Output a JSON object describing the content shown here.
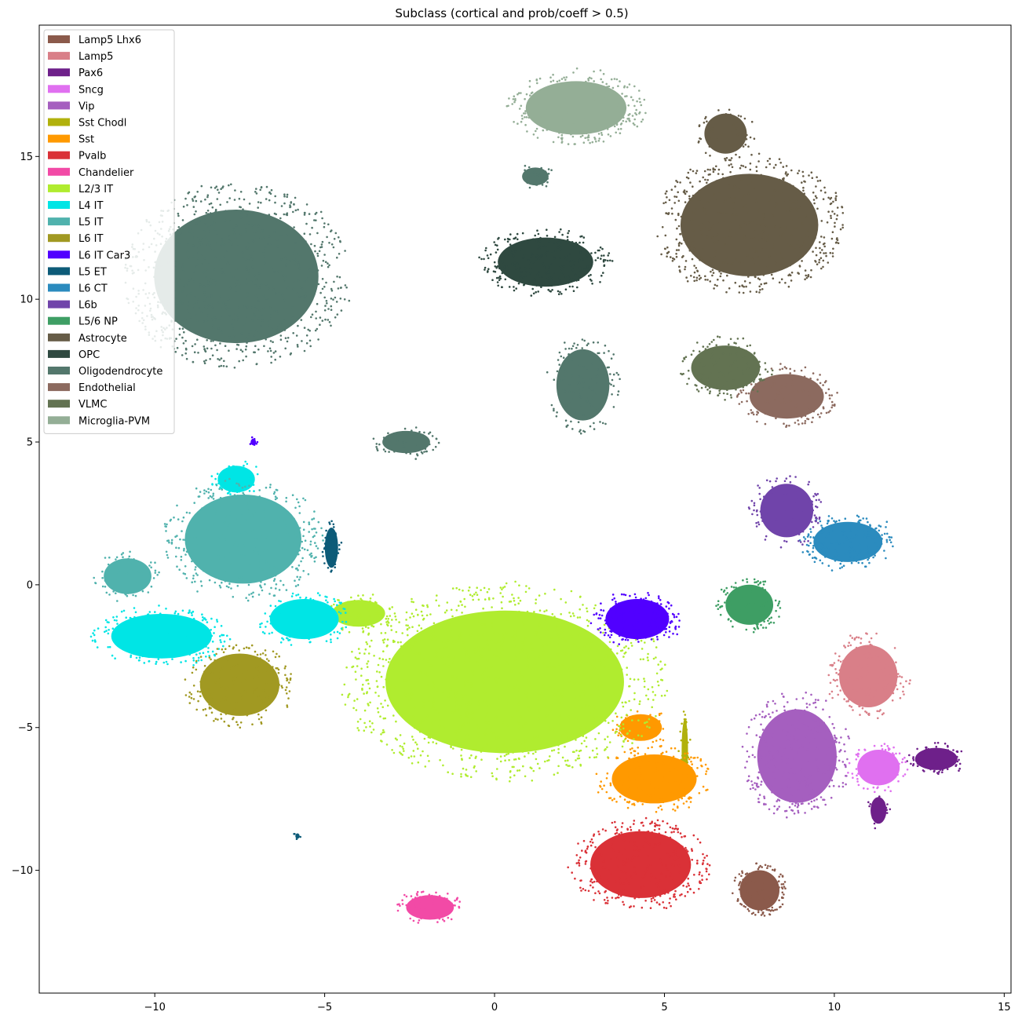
{
  "chart_data": {
    "type": "scatter",
    "title": "Subclass (cortical and prob/coeff > 0.5)",
    "xlabel": "",
    "ylabel": "",
    "xlim": [
      -13.4,
      15.2
    ],
    "ylim": [
      -14.3,
      19.6
    ],
    "x_ticks": [
      -10,
      -5,
      0,
      5,
      10,
      15
    ],
    "y_ticks": [
      -10,
      -5,
      0,
      5,
      10,
      15
    ],
    "x_tick_labels": [
      "−10",
      "−5",
      "0",
      "5",
      "10",
      "15"
    ],
    "y_tick_labels": [
      "−10",
      "−5",
      "0",
      "5",
      "10",
      "15"
    ],
    "grid": false,
    "legend_position": "top-left",
    "series": [
      {
        "name": "Lamp5 Lhx6",
        "color": "#8b5a4b",
        "clusters": [
          {
            "cx": 7.8,
            "cy": -10.7,
            "rx": 0.75,
            "ry": 0.9,
            "n": 140
          }
        ]
      },
      {
        "name": "Lamp5",
        "color": "#d97f88",
        "clusters": [
          {
            "cx": 11.0,
            "cy": -3.2,
            "rx": 1.1,
            "ry": 1.4,
            "n": 180
          }
        ]
      },
      {
        "name": "Pax6",
        "color": "#6e208a",
        "clusters": [
          {
            "cx": 13.0,
            "cy": -6.1,
            "rx": 0.8,
            "ry": 0.5,
            "n": 90
          },
          {
            "cx": 11.3,
            "cy": -7.9,
            "rx": 0.3,
            "ry": 0.6,
            "n": 30
          }
        ]
      },
      {
        "name": "Sncg",
        "color": "#e070f0",
        "clusters": [
          {
            "cx": 11.3,
            "cy": -6.4,
            "rx": 0.8,
            "ry": 0.8,
            "n": 110
          }
        ]
      },
      {
        "name": "Vip",
        "color": "#a55fbf",
        "clusters": [
          {
            "cx": 8.9,
            "cy": -6.0,
            "rx": 1.5,
            "ry": 2.1,
            "n": 330
          }
        ]
      },
      {
        "name": "Sst Chodl",
        "color": "#b1b10c",
        "clusters": [
          {
            "cx": 5.6,
            "cy": -5.8,
            "rx": 0.12,
            "ry": 1.4,
            "n": 40
          },
          {
            "cx": 2.5,
            "cy": -2.7,
            "rx": 0.2,
            "ry": 0.1,
            "n": 10
          }
        ]
      },
      {
        "name": "Sst",
        "color": "#ff9900",
        "clusters": [
          {
            "cx": 4.7,
            "cy": -6.8,
            "rx": 1.6,
            "ry": 1.1,
            "n": 220
          },
          {
            "cx": 4.3,
            "cy": -5.0,
            "rx": 0.8,
            "ry": 0.6,
            "n": 60
          }
        ]
      },
      {
        "name": "Pvalb",
        "color": "#da3137",
        "clusters": [
          {
            "cx": 4.3,
            "cy": -9.8,
            "rx": 1.9,
            "ry": 1.5,
            "n": 360
          }
        ]
      },
      {
        "name": "Chandelier",
        "color": "#f24aa6",
        "clusters": [
          {
            "cx": -1.9,
            "cy": -11.3,
            "rx": 0.9,
            "ry": 0.55,
            "n": 90
          }
        ]
      },
      {
        "name": "L2/3 IT",
        "color": "#b0ec2f",
        "clusters": [
          {
            "cx": 0.3,
            "cy": -3.4,
            "rx": 4.5,
            "ry": 3.2,
            "n": 1100
          },
          {
            "cx": -4.0,
            "cy": -1.0,
            "rx": 1.0,
            "ry": 0.6,
            "n": 80
          }
        ]
      },
      {
        "name": "L4 IT",
        "color": "#00e5e5",
        "clusters": [
          {
            "cx": -9.8,
            "cy": -1.8,
            "rx": 1.9,
            "ry": 1.0,
            "n": 260
          },
          {
            "cx": -5.6,
            "cy": -1.2,
            "rx": 1.3,
            "ry": 0.9,
            "n": 140
          },
          {
            "cx": -7.6,
            "cy": 3.7,
            "rx": 0.7,
            "ry": 0.6,
            "n": 50
          }
        ]
      },
      {
        "name": "L5 IT",
        "color": "#50b2ad",
        "clusters": [
          {
            "cx": -7.4,
            "cy": 1.6,
            "rx": 2.2,
            "ry": 2.0,
            "n": 420
          },
          {
            "cx": -10.8,
            "cy": 0.3,
            "rx": 0.9,
            "ry": 0.8,
            "n": 80
          }
        ]
      },
      {
        "name": "L6 IT",
        "color": "#a19922",
        "clusters": [
          {
            "cx": -7.5,
            "cy": -3.5,
            "rx": 1.5,
            "ry": 1.4,
            "n": 230
          }
        ]
      },
      {
        "name": "L6 IT Car3",
        "color": "#5100ff",
        "clusters": [
          {
            "cx": 4.2,
            "cy": -1.2,
            "rx": 1.2,
            "ry": 0.9,
            "n": 180
          },
          {
            "cx": -7.1,
            "cy": 5.0,
            "rx": 0.1,
            "ry": 0.15,
            "n": 8
          }
        ]
      },
      {
        "name": "L5 ET",
        "color": "#0d5b78",
        "clusters": [
          {
            "cx": -4.8,
            "cy": 1.3,
            "rx": 0.25,
            "ry": 0.9,
            "n": 50
          },
          {
            "cx": -5.8,
            "cy": -8.8,
            "rx": 0.08,
            "ry": 0.12,
            "n": 6
          }
        ]
      },
      {
        "name": "L6 CT",
        "color": "#2b8bbe",
        "clusters": [
          {
            "cx": 10.4,
            "cy": 1.5,
            "rx": 1.3,
            "ry": 0.9,
            "n": 200
          }
        ]
      },
      {
        "name": "L6b",
        "color": "#7044aa",
        "clusters": [
          {
            "cx": 8.6,
            "cy": 2.6,
            "rx": 1.0,
            "ry": 1.2,
            "n": 150
          }
        ]
      },
      {
        "name": "L5/6 NP",
        "color": "#3e9e64",
        "clusters": [
          {
            "cx": 7.5,
            "cy": -0.7,
            "rx": 0.9,
            "ry": 0.9,
            "n": 130
          }
        ]
      },
      {
        "name": "Astrocyte",
        "color": "#665c47",
        "clusters": [
          {
            "cx": 7.5,
            "cy": 12.6,
            "rx": 2.6,
            "ry": 2.3,
            "n": 620
          },
          {
            "cx": 6.8,
            "cy": 15.8,
            "rx": 0.8,
            "ry": 0.9,
            "n": 60
          }
        ]
      },
      {
        "name": "OPC",
        "color": "#2f4940",
        "clusters": [
          {
            "cx": 1.5,
            "cy": 11.3,
            "rx": 1.8,
            "ry": 1.1,
            "n": 300
          }
        ]
      },
      {
        "name": "Oligodendrocyte",
        "color": "#53776c",
        "clusters": [
          {
            "cx": -7.6,
            "cy": 10.8,
            "rx": 3.1,
            "ry": 3.0,
            "n": 900
          },
          {
            "cx": -2.6,
            "cy": 5.0,
            "rx": 0.9,
            "ry": 0.5,
            "n": 60
          },
          {
            "cx": 1.2,
            "cy": 14.3,
            "rx": 0.5,
            "ry": 0.4,
            "n": 40
          },
          {
            "cx": 2.6,
            "cy": 7.0,
            "rx": 1.0,
            "ry": 1.6,
            "n": 140
          }
        ]
      },
      {
        "name": "Endothelial",
        "color": "#8c6a5f",
        "clusters": [
          {
            "cx": 8.6,
            "cy": 6.6,
            "rx": 1.4,
            "ry": 1.0,
            "n": 180
          }
        ]
      },
      {
        "name": "VLMC",
        "color": "#637352",
        "clusters": [
          {
            "cx": 6.8,
            "cy": 7.6,
            "rx": 1.3,
            "ry": 1.0,
            "n": 150
          }
        ]
      },
      {
        "name": "Microglia-PVM",
        "color": "#94ae96",
        "clusters": [
          {
            "cx": 2.4,
            "cy": 16.7,
            "rx": 1.9,
            "ry": 1.2,
            "n": 320
          }
        ]
      }
    ]
  }
}
